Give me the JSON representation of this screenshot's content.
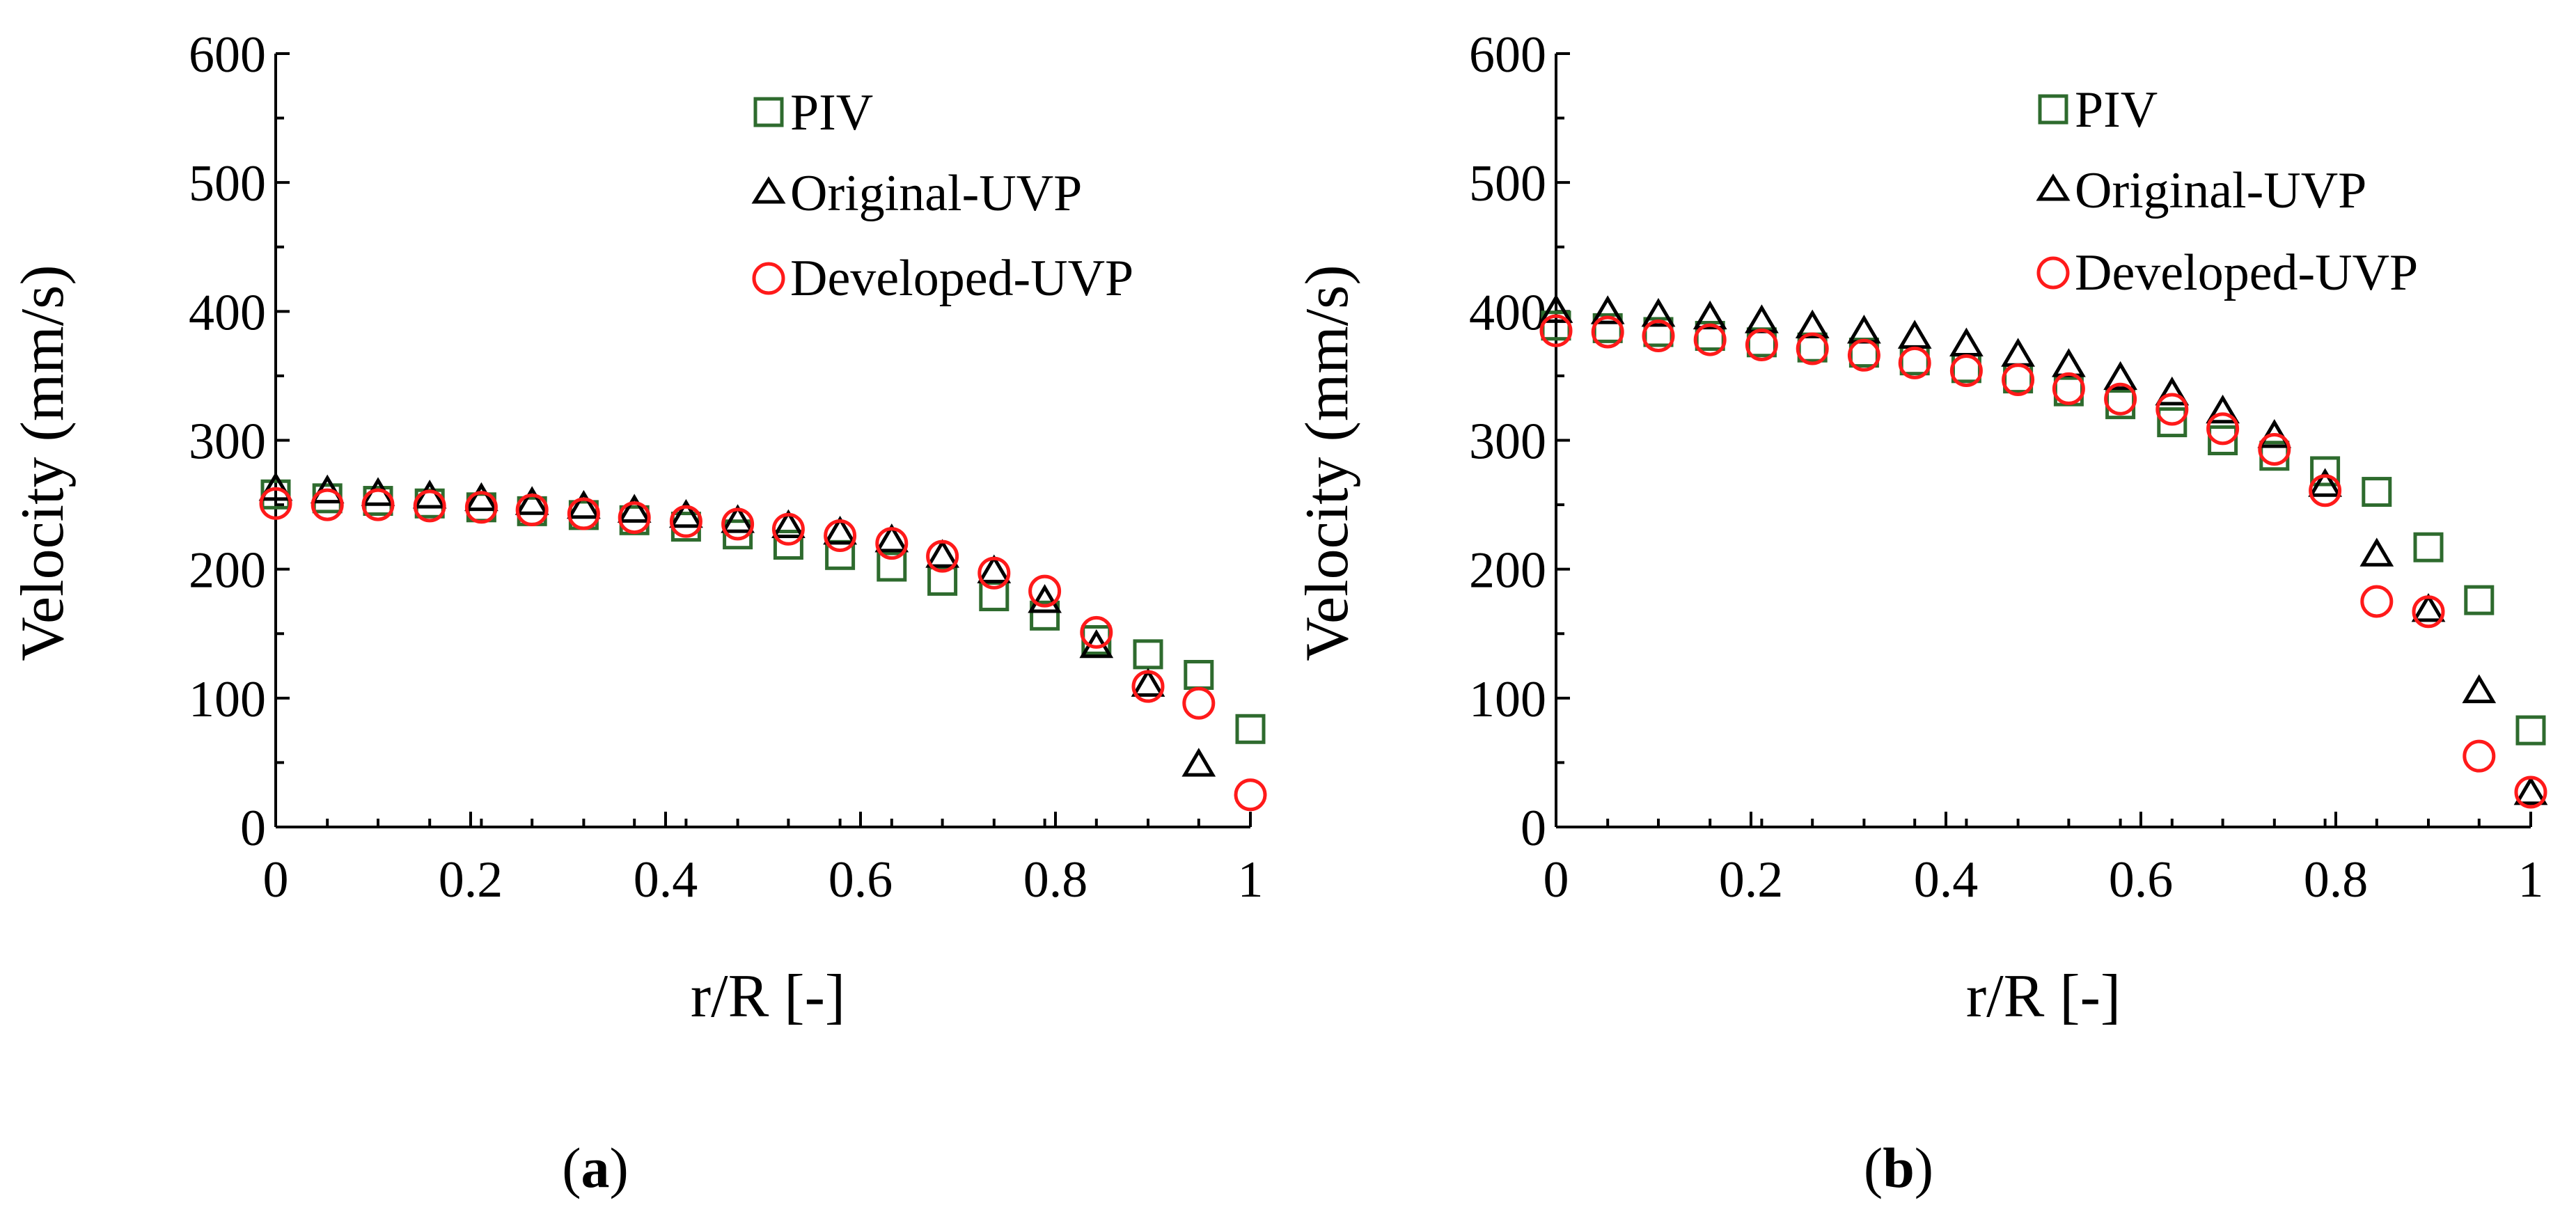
{
  "colors": {
    "piv": "#2e6b2e",
    "original": "#000000",
    "developed": "#ff1a1a"
  },
  "chart_data": [
    {
      "type": "scatter",
      "panel": "a",
      "caption": "(a)",
      "caption_letter": "a",
      "xlabel": "r/R [-]",
      "ylabel": "Velocity (mm/s)",
      "xlim": [
        0,
        1
      ],
      "ylim": [
        0,
        600
      ],
      "xticks": [
        0,
        0.2,
        0.4,
        0.6,
        0.8,
        1
      ],
      "xtick_labels": [
        "0",
        "0.2",
        "0.4",
        "0.6",
        "0.8",
        "1"
      ],
      "yticks": [
        0,
        100,
        200,
        300,
        400,
        500,
        600
      ],
      "ytick_labels": [
        "0",
        "100",
        "200",
        "300",
        "400",
        "500",
        "600"
      ],
      "legend_position": "top-right",
      "x": [
        0,
        0.053,
        0.105,
        0.158,
        0.211,
        0.263,
        0.316,
        0.368,
        0.421,
        0.474,
        0.526,
        0.579,
        0.632,
        0.684,
        0.737,
        0.789,
        0.842,
        0.895,
        0.947,
        1.0
      ],
      "series": [
        {
          "name": "PIV",
          "marker": "square",
          "color_key": "piv",
          "values": [
            258,
            255,
            253,
            251,
            248,
            245,
            242,
            238,
            233,
            227,
            219,
            211,
            202,
            191,
            179,
            164,
            145,
            134,
            118,
            76
          ]
        },
        {
          "name": "Original-UVP",
          "marker": "triangle",
          "color_key": "original",
          "values": [
            262,
            260,
            258,
            256,
            254,
            251,
            248,
            245,
            241,
            237,
            233,
            228,
            222,
            210,
            198,
            175,
            140,
            110,
            48,
            null
          ]
        },
        {
          "name": "Developed-UVP",
          "marker": "circle",
          "color_key": "developed",
          "values": [
            251,
            250,
            250,
            249,
            248,
            246,
            243,
            240,
            237,
            235,
            231,
            226,
            220,
            210,
            197,
            183,
            151,
            109,
            96,
            25
          ]
        }
      ]
    },
    {
      "type": "scatter",
      "panel": "b",
      "caption": "(b)",
      "caption_letter": "b",
      "xlabel": "r/R [-]",
      "ylabel": "Velocity (mm/s)",
      "xlim": [
        0,
        1
      ],
      "ylim": [
        0,
        600
      ],
      "xticks": [
        0,
        0.2,
        0.4,
        0.6,
        0.8,
        1
      ],
      "xtick_labels": [
        "0",
        "0.2",
        "0.4",
        "0.6",
        "0.8",
        "1"
      ],
      "yticks": [
        0,
        100,
        200,
        300,
        400,
        500,
        600
      ],
      "ytick_labels": [
        "0",
        "100",
        "200",
        "300",
        "400",
        "500",
        "600"
      ],
      "legend_position": "top-right",
      "x": [
        0,
        0.053,
        0.105,
        0.158,
        0.211,
        0.263,
        0.316,
        0.368,
        0.421,
        0.474,
        0.526,
        0.579,
        0.632,
        0.684,
        0.737,
        0.789,
        0.842,
        0.895,
        0.947,
        1.0
      ],
      "series": [
        {
          "name": "PIV",
          "marker": "square",
          "color_key": "piv",
          "values": [
            389,
            387,
            384,
            381,
            376,
            372,
            368,
            362,
            356,
            348,
            338,
            328,
            314,
            300,
            288,
            276,
            260,
            217,
            176,
            75
          ]
        },
        {
          "name": "Original-UVP",
          "marker": "triangle",
          "color_key": "original",
          "values": [
            400,
            399,
            397,
            395,
            392,
            388,
            384,
            380,
            374,
            366,
            358,
            348,
            336,
            322,
            303,
            265,
            211,
            168,
            105,
            26
          ]
        },
        {
          "name": "Developed-UVP",
          "marker": "circle",
          "color_key": "developed",
          "values": [
            385,
            384,
            381,
            378,
            374,
            371,
            366,
            360,
            354,
            347,
            340,
            332,
            324,
            309,
            293,
            261,
            175,
            167,
            55,
            27
          ]
        }
      ]
    }
  ]
}
